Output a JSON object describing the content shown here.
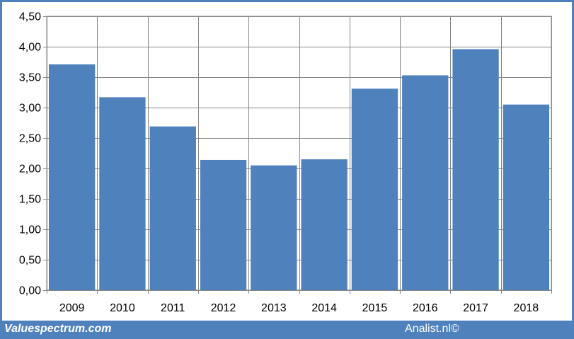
{
  "chart_data": {
    "type": "bar",
    "categories": [
      "2009",
      "2010",
      "2011",
      "2012",
      "2013",
      "2014",
      "2015",
      "2016",
      "2017",
      "2018"
    ],
    "values": [
      3.71,
      3.17,
      2.69,
      2.14,
      2.05,
      2.15,
      3.31,
      3.53,
      3.96,
      3.05
    ],
    "yticks": [
      "0,00",
      "0,50",
      "1,00",
      "1,50",
      "2,00",
      "2,50",
      "3,00",
      "3,50",
      "4,00",
      "4,50"
    ],
    "ylim": [
      0,
      4.5
    ],
    "grid": true,
    "bar_color": "#4f81bd",
    "title": "",
    "xlabel": "",
    "ylabel": ""
  },
  "footer": {
    "left_text": "Valuespectrum.com",
    "right_text": "Analist.nl©",
    "color": "#4f81bd"
  }
}
